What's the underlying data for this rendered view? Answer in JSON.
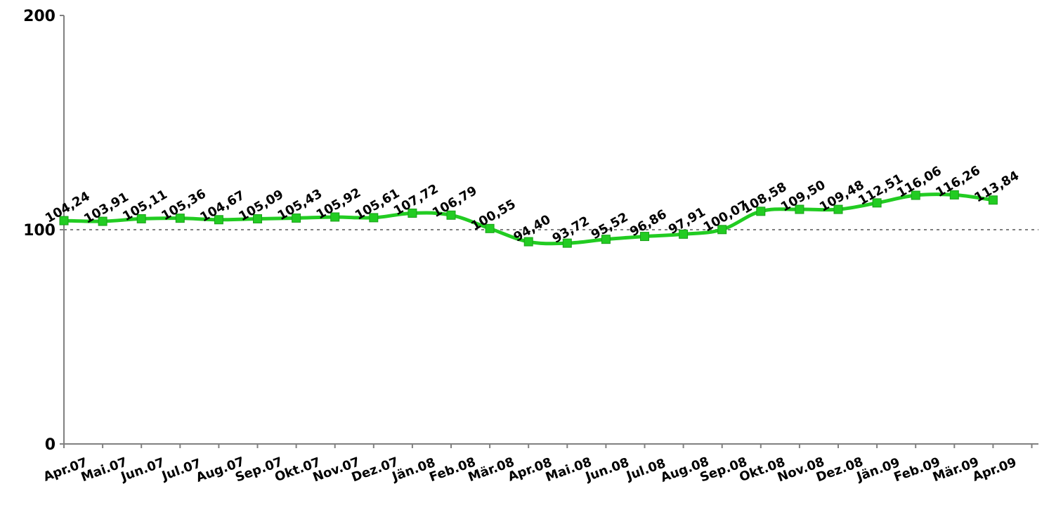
{
  "chart_data": {
    "type": "line",
    "title": "",
    "xlabel": "",
    "ylabel": "",
    "ylim": [
      0,
      200
    ],
    "y_ticks": [
      "0",
      "100",
      "200"
    ],
    "reference_line": {
      "value": 100,
      "style": "dotted",
      "color": "#7f7f7f"
    },
    "grid": false,
    "legend": "none",
    "categories": [
      "Apr.07",
      "Mai.07",
      "Jun.07",
      "Jul.07",
      "Aug.07",
      "Sep.07",
      "Okt.07",
      "Nov.07",
      "Dez.07",
      "Jän.08",
      "Feb.08",
      "Mär.08",
      "Apr.08",
      "Mai.08",
      "Jun.08",
      "Jul.08",
      "Aug.08",
      "Sep.08",
      "Okt.08",
      "Nov.08",
      "Dez.08",
      "Jän.09",
      "Feb.09",
      "Mär.09",
      "Apr.09"
    ],
    "series": [
      {
        "color": "#22cc22",
        "values": [
          104.24,
          103.91,
          105.11,
          105.36,
          104.67,
          105.09,
          105.43,
          105.92,
          105.61,
          107.72,
          106.79,
          100.55,
          94.4,
          93.72,
          95.52,
          96.86,
          97.91,
          100.07,
          108.58,
          109.5,
          109.48,
          112.51,
          116.06,
          116.26,
          113.84
        ],
        "labels": [
          "104,24",
          "103,91",
          "105,11",
          "105,36",
          "104,67",
          "105,09",
          "105,43",
          "105,92",
          "105,61",
          "107,72",
          "106,79",
          "100,55",
          "94,40",
          "93,72",
          "95,52",
          "96,86",
          "97,91",
          "100,07",
          "108,58",
          "109,50",
          "109,48",
          "112,51",
          "116,06",
          "116,26",
          "113,84"
        ]
      }
    ]
  }
}
